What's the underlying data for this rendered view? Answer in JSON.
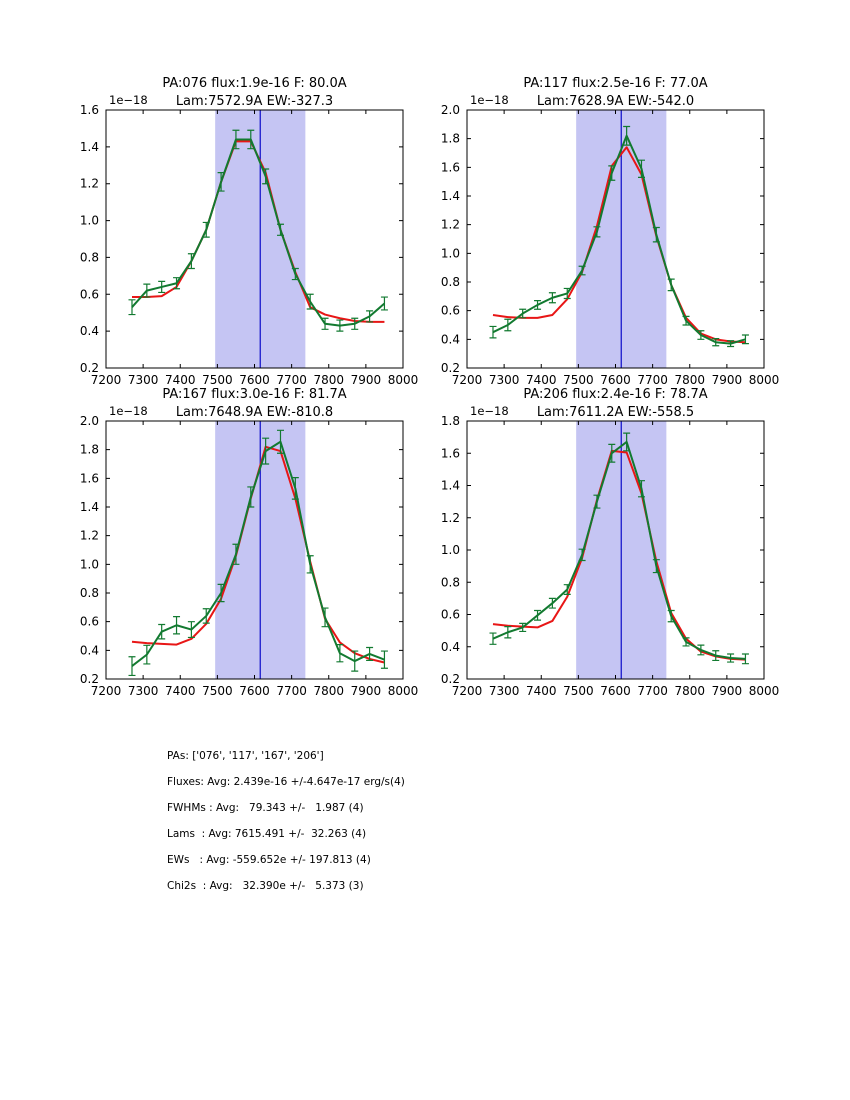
{
  "colors": {
    "band_fill": "#c5c5f3",
    "vline": "#1a1acc",
    "data_green": "#127a30",
    "model_red": "#e81616",
    "frame": "#000000",
    "text": "#000000"
  },
  "chart_data": [
    {
      "type": "line",
      "pa": "076",
      "title_line1": "PA:076 flux:1.9e-16 F: 80.0A",
      "title_line2": "Lam:7572.9A EW:-327.3",
      "offset_label": "1e−18",
      "xlim": [
        7200,
        8000
      ],
      "ylim": [
        0.2,
        1.6
      ],
      "x_ticks": [
        "7200",
        "7300",
        "7400",
        "7500",
        "7600",
        "7700",
        "7800",
        "7900",
        "8000"
      ],
      "y_ticks": [
        "0.2",
        "0.4",
        "0.6",
        "0.8",
        "1.0",
        "1.2",
        "1.4",
        "1.6"
      ],
      "band": [
        7494,
        7737
      ],
      "vline": 7615.5,
      "x": [
        7270,
        7310,
        7350,
        7390,
        7430,
        7470,
        7510,
        7550,
        7590,
        7630,
        7670,
        7710,
        7750,
        7790,
        7830,
        7870,
        7910,
        7950
      ],
      "data_series": {
        "name": "observed-spectrum",
        "values": [
          0.53,
          0.62,
          0.64,
          0.66,
          0.78,
          0.95,
          1.21,
          1.44,
          1.44,
          1.24,
          0.95,
          0.71,
          0.56,
          0.44,
          0.43,
          0.44,
          0.48,
          0.55
        ],
        "errors": [
          0.04,
          0.035,
          0.03,
          0.03,
          0.04,
          0.04,
          0.05,
          0.05,
          0.05,
          0.04,
          0.03,
          0.03,
          0.04,
          0.03,
          0.03,
          0.03,
          0.03,
          0.035
        ]
      },
      "model_series": {
        "name": "model-fit",
        "values": [
          0.585,
          0.585,
          0.59,
          0.64,
          0.78,
          0.95,
          1.21,
          1.43,
          1.43,
          1.26,
          0.95,
          0.72,
          0.53,
          0.49,
          0.47,
          0.455,
          0.45,
          0.45
        ]
      }
    },
    {
      "type": "line",
      "pa": "117",
      "title_line1": "PA:117 flux:2.5e-16 F: 77.0A",
      "title_line2": "Lam:7628.9A EW:-542.0",
      "offset_label": "1e−18",
      "xlim": [
        7200,
        8000
      ],
      "ylim": [
        0.2,
        2.0
      ],
      "x_ticks": [
        "7200",
        "7300",
        "7400",
        "7500",
        "7600",
        "7700",
        "7800",
        "7900",
        "8000"
      ],
      "y_ticks": [
        "0.2",
        "0.4",
        "0.6",
        "0.8",
        "1.0",
        "1.2",
        "1.4",
        "1.6",
        "1.8",
        "2.0"
      ],
      "band": [
        7494,
        7737
      ],
      "vline": 7615.5,
      "x": [
        7270,
        7310,
        7350,
        7390,
        7430,
        7470,
        7510,
        7550,
        7590,
        7630,
        7670,
        7710,
        7750,
        7790,
        7830,
        7870,
        7910,
        7950
      ],
      "data_series": {
        "name": "observed-spectrum",
        "values": [
          0.45,
          0.5,
          0.58,
          0.64,
          0.69,
          0.72,
          0.88,
          1.15,
          1.56,
          1.82,
          1.59,
          1.13,
          0.78,
          0.53,
          0.43,
          0.38,
          0.37,
          0.4
        ],
        "errors": [
          0.04,
          0.04,
          0.03,
          0.03,
          0.035,
          0.035,
          0.03,
          0.035,
          0.05,
          0.065,
          0.06,
          0.05,
          0.04,
          0.03,
          0.03,
          0.025,
          0.02,
          0.03
        ]
      },
      "model_series": {
        "name": "model-fit",
        "values": [
          0.57,
          0.555,
          0.55,
          0.55,
          0.57,
          0.68,
          0.87,
          1.19,
          1.61,
          1.74,
          1.55,
          1.12,
          0.78,
          0.55,
          0.44,
          0.4,
          0.385,
          0.38
        ]
      }
    },
    {
      "type": "line",
      "pa": "167",
      "title_line1": "PA:167 flux:3.0e-16 F: 81.7A",
      "title_line2": "Lam:7648.9A EW:-810.8",
      "offset_label": "1e−18",
      "xlim": [
        7200,
        8000
      ],
      "ylim": [
        0.2,
        2.0
      ],
      "x_ticks": [
        "7200",
        "7300",
        "7400",
        "7500",
        "7600",
        "7700",
        "7800",
        "7900",
        "8000"
      ],
      "y_ticks": [
        "0.2",
        "0.4",
        "0.6",
        "0.8",
        "1.0",
        "1.2",
        "1.4",
        "1.6",
        "1.8",
        "2.0"
      ],
      "band": [
        7494,
        7737
      ],
      "vline": 7615.5,
      "x": [
        7270,
        7310,
        7350,
        7390,
        7430,
        7470,
        7510,
        7550,
        7590,
        7630,
        7670,
        7710,
        7750,
        7790,
        7830,
        7870,
        7910,
        7950
      ],
      "data_series": {
        "name": "observed-spectrum",
        "values": [
          0.29,
          0.37,
          0.53,
          0.575,
          0.545,
          0.64,
          0.8,
          1.07,
          1.47,
          1.79,
          1.855,
          1.53,
          1.0,
          0.63,
          0.38,
          0.325,
          0.375,
          0.335
        ],
        "errors": [
          0.065,
          0.065,
          0.05,
          0.06,
          0.055,
          0.05,
          0.06,
          0.07,
          0.07,
          0.09,
          0.08,
          0.075,
          0.06,
          0.065,
          0.06,
          0.07,
          0.045,
          0.06
        ]
      },
      "model_series": {
        "name": "model-fit",
        "values": [
          0.46,
          0.45,
          0.445,
          0.44,
          0.48,
          0.585,
          0.76,
          1.06,
          1.46,
          1.82,
          1.79,
          1.46,
          1.02,
          0.62,
          0.455,
          0.38,
          0.34,
          0.315
        ]
      }
    },
    {
      "type": "line",
      "pa": "206",
      "title_line1": "PA:206 flux:2.4e-16 F: 78.7A",
      "title_line2": "Lam:7611.2A EW:-558.5",
      "offset_label": "1e−18",
      "xlim": [
        7200,
        8000
      ],
      "ylim": [
        0.2,
        1.8
      ],
      "x_ticks": [
        "7200",
        "7300",
        "7400",
        "7500",
        "7600",
        "7700",
        "7800",
        "7900",
        "8000"
      ],
      "y_ticks": [
        "0.2",
        "0.4",
        "0.6",
        "0.8",
        "1.0",
        "1.2",
        "1.4",
        "1.6",
        "1.8"
      ],
      "band": [
        7494,
        7737
      ],
      "vline": 7615.5,
      "x": [
        7270,
        7310,
        7350,
        7390,
        7430,
        7470,
        7510,
        7550,
        7590,
        7630,
        7670,
        7710,
        7750,
        7790,
        7830,
        7870,
        7910,
        7950
      ],
      "data_series": {
        "name": "observed-spectrum",
        "values": [
          0.45,
          0.49,
          0.52,
          0.595,
          0.67,
          0.755,
          0.97,
          1.3,
          1.6,
          1.67,
          1.38,
          0.9,
          0.59,
          0.43,
          0.38,
          0.345,
          0.33,
          0.325
        ],
        "errors": [
          0.035,
          0.035,
          0.025,
          0.03,
          0.03,
          0.03,
          0.035,
          0.04,
          0.055,
          0.055,
          0.05,
          0.04,
          0.035,
          0.025,
          0.03,
          0.03,
          0.025,
          0.03
        ]
      },
      "model_series": {
        "name": "model-fit",
        "values": [
          0.54,
          0.53,
          0.525,
          0.52,
          0.56,
          0.71,
          0.95,
          1.31,
          1.615,
          1.605,
          1.35,
          0.93,
          0.61,
          0.45,
          0.37,
          0.34,
          0.325,
          0.32
        ]
      }
    }
  ],
  "summary": {
    "lines": [
      "PAs: ['076', '117', '167', '206']",
      "Fluxes: Avg: 2.439e-16 +/-4.647e-17 erg/s(4)",
      "FWHMs : Avg:   79.343 +/-   1.987 (4)",
      "Lams  : Avg: 7615.491 +/-  32.263 (4)",
      "EWs   : Avg: -559.652e +/- 197.813 (4)",
      "Chi2s  : Avg:   32.390e +/-   5.373 (3)"
    ]
  }
}
